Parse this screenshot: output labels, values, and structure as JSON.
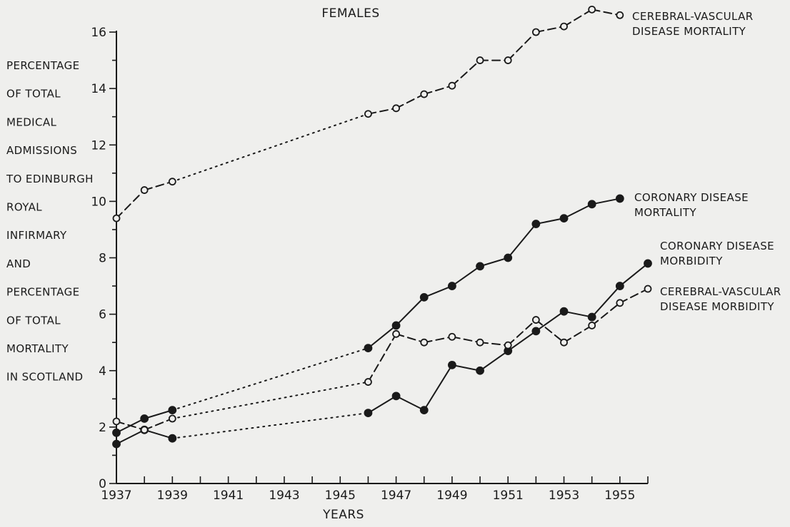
{
  "chart_data": {
    "type": "line",
    "title": "FEMALES",
    "xlabel": "YEARS",
    "ylabel_lines": [
      "PERCENTAGE",
      "OF TOTAL",
      "MEDICAL",
      "ADMISSIONS",
      "TO EDINBURGH",
      "ROYAL",
      "INFIRMARY",
      "AND",
      "PERCENTAGE",
      "OF TOTAL",
      "MORTALITY",
      "IN SCOTLAND"
    ],
    "xlim": [
      1937,
      1956
    ],
    "ylim": [
      0,
      16
    ],
    "x_ticks": [
      1937,
      1938,
      1939,
      1940,
      1941,
      1942,
      1943,
      1944,
      1945,
      1946,
      1947,
      1948,
      1949,
      1950,
      1951,
      1952,
      1953,
      1954,
      1955,
      1956
    ],
    "x_tick_labels": [
      "1937",
      "1939",
      "1941",
      "1943",
      "1945",
      "1947",
      "1949",
      "1951",
      "1953",
      "1955"
    ],
    "x_tick_label_values": [
      1937,
      1939,
      1941,
      1943,
      1945,
      1947,
      1949,
      1951,
      1953,
      1955
    ],
    "y_ticks": [
      0,
      1,
      2,
      3,
      4,
      5,
      6,
      7,
      8,
      9,
      10,
      11,
      12,
      13,
      14,
      15,
      16
    ],
    "y_tick_labels": [
      "0",
      "2",
      "4",
      "6",
      "8",
      "10",
      "12",
      "14",
      "16"
    ],
    "y_tick_label_values": [
      0,
      2,
      4,
      6,
      8,
      10,
      12,
      14,
      16
    ],
    "grid": false,
    "gap_years": [
      1940,
      1941,
      1942,
      1943,
      1944,
      1945
    ],
    "series": [
      {
        "name": "CEREBRAL-VASCULAR DISEASE MORTALITY",
        "label_lines": [
          "CEREBRAL-VASCULAR",
          "DISEASE MORTALITY"
        ],
        "marker": "open",
        "line": "dashed",
        "points": [
          [
            1937,
            9.4
          ],
          [
            1938,
            10.4
          ],
          [
            1939,
            10.7
          ],
          [
            1946,
            13.1
          ],
          [
            1947,
            13.3
          ],
          [
            1948,
            13.8
          ],
          [
            1949,
            14.1
          ],
          [
            1950,
            15.0
          ],
          [
            1951,
            15.0
          ],
          [
            1952,
            16.0
          ],
          [
            1953,
            16.2
          ],
          [
            1954,
            16.8
          ],
          [
            1955,
            16.6
          ]
        ]
      },
      {
        "name": "CORONARY DISEASE MORTALITY",
        "label_lines": [
          "CORONARY DISEASE",
          "MORTALITY"
        ],
        "marker": "filled",
        "line": "solid",
        "points": [
          [
            1937,
            1.8
          ],
          [
            1938,
            2.3
          ],
          [
            1939,
            2.6
          ],
          [
            1946,
            4.8
          ],
          [
            1947,
            5.6
          ],
          [
            1948,
            6.6
          ],
          [
            1949,
            7.0
          ],
          [
            1950,
            7.7
          ],
          [
            1951,
            8.0
          ],
          [
            1952,
            9.2
          ],
          [
            1953,
            9.4
          ],
          [
            1954,
            9.9
          ],
          [
            1955,
            10.1
          ]
        ]
      },
      {
        "name": "CORONARY DISEASE MORBIDITY",
        "label_lines": [
          "CORONARY DISEASE",
          "MORBIDITY"
        ],
        "marker": "filled",
        "line": "solid",
        "points": [
          [
            1937,
            1.4
          ],
          [
            1938,
            1.9
          ],
          [
            1939,
            1.6
          ],
          [
            1946,
            2.5
          ],
          [
            1947,
            3.1
          ],
          [
            1948,
            2.6
          ],
          [
            1949,
            4.2
          ],
          [
            1950,
            4.0
          ],
          [
            1951,
            4.7
          ],
          [
            1952,
            5.4
          ],
          [
            1953,
            6.1
          ],
          [
            1954,
            5.9
          ],
          [
            1955,
            7.0
          ],
          [
            1956,
            7.8
          ]
        ]
      },
      {
        "name": "CEREBRAL-VASCULAR DISEASE MORBIDITY",
        "label_lines": [
          "CEREBRAL-VASCULAR",
          "DISEASE MORBIDITY"
        ],
        "marker": "open",
        "line": "dashed",
        "points": [
          [
            1937,
            2.2
          ],
          [
            1938,
            1.9
          ],
          [
            1939,
            2.3
          ],
          [
            1946,
            3.6
          ],
          [
            1947,
            5.3
          ],
          [
            1948,
            5.0
          ],
          [
            1949,
            5.2
          ],
          [
            1950,
            5.0
          ],
          [
            1951,
            4.9
          ],
          [
            1952,
            5.8
          ],
          [
            1953,
            5.0
          ],
          [
            1954,
            5.6
          ],
          [
            1955,
            6.4
          ],
          [
            1956,
            6.9
          ]
        ]
      }
    ]
  },
  "colors": {
    "background": "#efefed",
    "ink": "#1a1a1a"
  }
}
